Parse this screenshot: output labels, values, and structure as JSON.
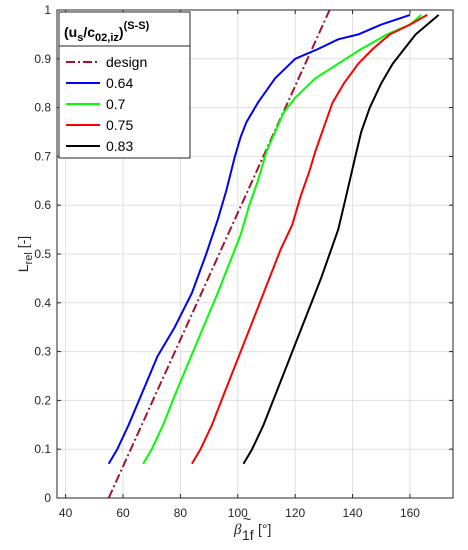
{
  "chart_data": {
    "type": "line",
    "xlabel": {
      "symbol": "β",
      "accent": "~",
      "subscript": "1f",
      "unit": "[°]"
    },
    "ylabel": {
      "main": "L",
      "subscript": "rel",
      "unit": "[-]"
    },
    "xlim": [
      37,
      175
    ],
    "ylim": [
      0,
      1
    ],
    "xticks": [
      40,
      60,
      80,
      100,
      120,
      140,
      160
    ],
    "yticks": [
      0,
      0.1,
      0.2,
      0.3,
      0.4,
      0.5,
      0.6,
      0.7,
      0.8,
      0.9,
      1
    ],
    "ytick_labels": [
      "0",
      "0.1",
      "0.2",
      "0.3",
      "0.4",
      "0.5",
      "0.6",
      "0.7",
      "0.8",
      "0.9",
      "1"
    ],
    "grid": true,
    "legend": {
      "position": "top-left",
      "title": {
        "prefix": "(u",
        "sub1": "s",
        "mid": "/c",
        "sub2": "02,iz",
        "suffix": ")",
        "sup": "(S-S)"
      }
    },
    "series": [
      {
        "name": "design",
        "color": "#a2142f",
        "dash": "dashdot",
        "x": [
          55,
          132
        ],
        "y": [
          0,
          1
        ]
      },
      {
        "name": "0.64",
        "color": "#0000ff",
        "dash": "solid",
        "x": [
          55,
          58,
          62,
          67,
          72,
          78,
          84,
          89,
          93,
          96,
          99,
          101,
          103,
          107,
          113,
          120,
          128,
          135,
          142,
          150,
          160
        ],
        "y": [
          0.07,
          0.1,
          0.15,
          0.22,
          0.29,
          0.35,
          0.42,
          0.5,
          0.57,
          0.63,
          0.7,
          0.74,
          0.77,
          0.81,
          0.86,
          0.9,
          0.92,
          0.94,
          0.95,
          0.97,
          0.99
        ]
      },
      {
        "name": "0.7",
        "color": "#00ff00",
        "dash": "solid",
        "x": [
          67,
          70,
          74,
          78,
          83,
          88,
          93,
          97,
          101,
          104,
          107,
          110,
          113,
          116,
          120,
          127,
          135,
          143,
          152,
          160,
          164
        ],
        "y": [
          0.07,
          0.1,
          0.15,
          0.21,
          0.28,
          0.35,
          0.42,
          0.48,
          0.54,
          0.6,
          0.65,
          0.71,
          0.75,
          0.79,
          0.82,
          0.86,
          0.89,
          0.92,
          0.95,
          0.97,
          0.99
        ]
      },
      {
        "name": "0.75",
        "color": "#ff0000",
        "dash": "solid",
        "x": [
          84,
          87,
          91,
          95,
          99,
          103,
          107,
          111,
          115,
          119,
          122,
          125,
          127,
          130,
          133,
          137,
          142,
          147,
          153,
          160,
          166
        ],
        "y": [
          0.07,
          0.1,
          0.15,
          0.21,
          0.27,
          0.33,
          0.39,
          0.45,
          0.51,
          0.56,
          0.62,
          0.67,
          0.71,
          0.76,
          0.81,
          0.85,
          0.89,
          0.92,
          0.95,
          0.97,
          0.99
        ]
      },
      {
        "name": "0.83",
        "color": "#000000",
        "dash": "solid",
        "x": [
          102,
          105,
          109,
          113,
          117,
          121,
          125,
          129,
          132,
          135,
          137,
          139,
          141,
          143,
          146,
          150,
          154,
          158,
          162,
          166,
          170
        ],
        "y": [
          0.07,
          0.1,
          0.15,
          0.21,
          0.27,
          0.33,
          0.39,
          0.45,
          0.5,
          0.55,
          0.6,
          0.65,
          0.7,
          0.75,
          0.8,
          0.85,
          0.89,
          0.92,
          0.95,
          0.97,
          0.99
        ]
      }
    ]
  }
}
